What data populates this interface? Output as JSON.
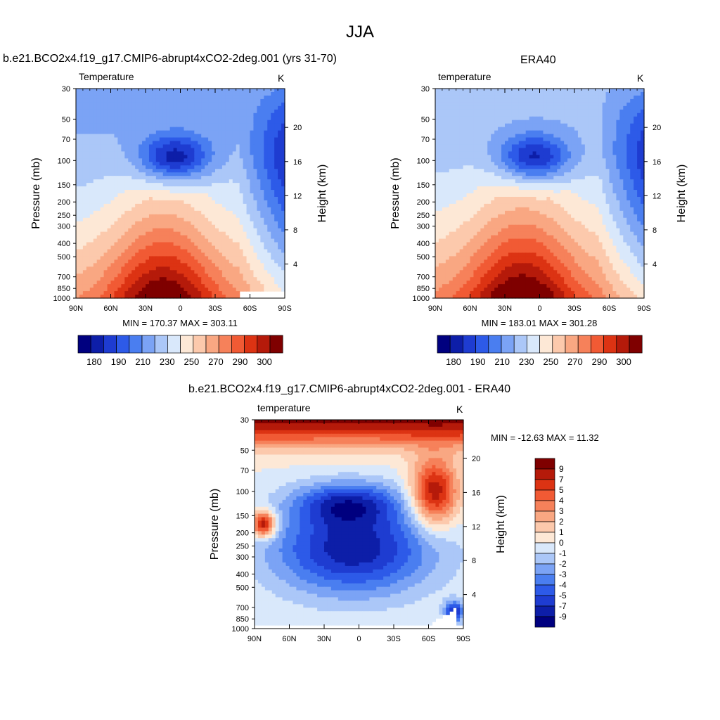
{
  "title": "JJA",
  "panels": [
    {
      "title": "b.e21.BCO2x4.f19_g17.CMIP6-abrupt4xCO2-2deg.001 (yrs 31-70)",
      "left_label": "Temperature",
      "right_label": "K",
      "min_max": "MIN = 170.37  MAX = 303.11"
    },
    {
      "title": "ERA40",
      "left_label": "temperature",
      "right_label": "K",
      "min_max": "MIN = 183.01  MAX = 301.28"
    },
    {
      "title": "b.e21.BCO2x4.f19_g17.CMIP6-abrupt4xCO2-2deg.001 - ERA40",
      "left_label": "temperature",
      "right_label": "K",
      "min_max": "MIN = -12.63  MAX =  11.32"
    }
  ],
  "axes": {
    "ylabel": "Pressure (mb)",
    "y2label": "Height (km)",
    "pressure_ticks": [
      "30",
      "50",
      "70",
      "100",
      "150",
      "200",
      "250",
      "300",
      "400",
      "500",
      "700",
      "850",
      "1000"
    ],
    "height_ticks": [
      "20",
      "16",
      "12",
      "8",
      "4"
    ],
    "lat_ticks": [
      "90N",
      "60N",
      "30N",
      "0",
      "30S",
      "60S",
      "90S"
    ]
  },
  "colorbar_main": {
    "colors": [
      "#00007f",
      "#0d1ea8",
      "#1e3cd1",
      "#2d5ae8",
      "#4a7ef0",
      "#7ba3f5",
      "#abc7f8",
      "#d9e8fb",
      "#fde8d6",
      "#fcc9ac",
      "#f9a782",
      "#f6815a",
      "#f15a34",
      "#dc3313",
      "#b51a0a",
      "#7f0000"
    ],
    "labels": [
      "180",
      "190",
      "210",
      "230",
      "250",
      "270",
      "290",
      "300"
    ]
  },
  "colorbar_diff": {
    "colors": [
      "#7f0000",
      "#b51a0a",
      "#dc3313",
      "#f15a34",
      "#f6815a",
      "#f9a782",
      "#fcc9ac",
      "#fde8d6",
      "#d9e8fb",
      "#abc7f8",
      "#7ba3f5",
      "#4a7ef0",
      "#2d5ae8",
      "#1e3cd1",
      "#0d1ea8",
      "#00007f"
    ],
    "labels": [
      "9",
      "7",
      "5",
      "4",
      "3",
      "2",
      "1",
      "0",
      "-1",
      "-2",
      "-3",
      "-4",
      "-5",
      "-7",
      "-9"
    ]
  },
  "chart_data": [
    {
      "type": "heatmap",
      "title": "b.e21.BCO2x4.f19_g17.CMIP6-abrupt4xCO2-2deg.001 (yrs 31-70)",
      "variable": "Temperature",
      "units": "K",
      "x": [
        "90N",
        "60N",
        "30N",
        "0",
        "30S",
        "60S",
        "90S"
      ],
      "y_pressure_mb": [
        30,
        50,
        70,
        100,
        150,
        200,
        250,
        300,
        400,
        500,
        700,
        850,
        1000
      ],
      "y_scale": "log",
      "min": 170.37,
      "max": 303.11,
      "contour_levels": [
        180,
        190,
        210,
        230,
        250,
        270,
        290,
        300
      ]
    },
    {
      "type": "heatmap",
      "title": "ERA40",
      "variable": "temperature",
      "units": "K",
      "x": [
        "90N",
        "60N",
        "30N",
        "0",
        "30S",
        "60S",
        "90S"
      ],
      "y_pressure_mb": [
        30,
        50,
        70,
        100,
        150,
        200,
        250,
        300,
        400,
        500,
        700,
        850,
        1000
      ],
      "y_scale": "log",
      "min": 183.01,
      "max": 301.28,
      "contour_levels": [
        180,
        190,
        210,
        230,
        250,
        270,
        290,
        300
      ]
    },
    {
      "type": "heatmap",
      "title": "b.e21.BCO2x4.f19_g17.CMIP6-abrupt4xCO2-2deg.001 - ERA40",
      "variable": "temperature",
      "units": "K",
      "x": [
        "90N",
        "60N",
        "30N",
        "0",
        "30S",
        "60S",
        "90S"
      ],
      "y_pressure_mb": [
        30,
        50,
        70,
        100,
        150,
        200,
        250,
        300,
        400,
        500,
        700,
        850,
        1000
      ],
      "y_scale": "log",
      "min": -12.63,
      "max": 11.32,
      "contour_levels": [
        -9,
        -7,
        -5,
        -4,
        -3,
        -2,
        -1,
        0,
        1,
        2,
        3,
        4,
        5,
        7,
        9
      ]
    }
  ]
}
